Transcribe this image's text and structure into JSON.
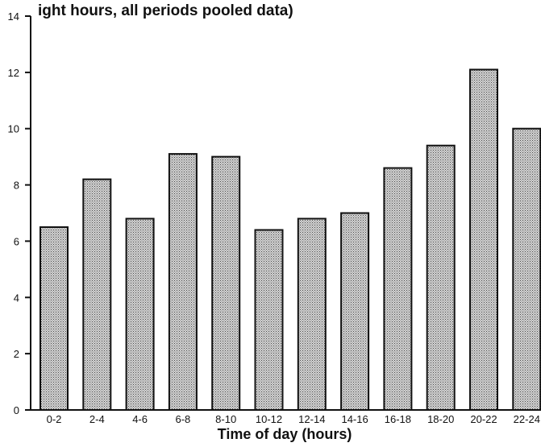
{
  "chart_data": {
    "type": "bar",
    "title": "ight hours, all periods pooled data)",
    "xlabel": "Time of day (hours)",
    "ylabel": "",
    "ylim": [
      0,
      14
    ],
    "yticks": [
      0,
      2,
      4,
      6,
      8,
      10,
      12,
      14
    ],
    "categories": [
      "0-2",
      "2-4",
      "4-6",
      "6-8",
      "8-10",
      "10-12",
      "12-14",
      "14-16",
      "16-18",
      "18-20",
      "20-22",
      "22-24"
    ],
    "values": [
      6.5,
      8.2,
      6.8,
      9.1,
      9.0,
      6.4,
      6.8,
      7.0,
      8.6,
      9.4,
      12.1,
      10.0
    ],
    "grid": false,
    "legend": "none",
    "bar_color": "#b8b8b8",
    "edge_color": "#111111"
  }
}
